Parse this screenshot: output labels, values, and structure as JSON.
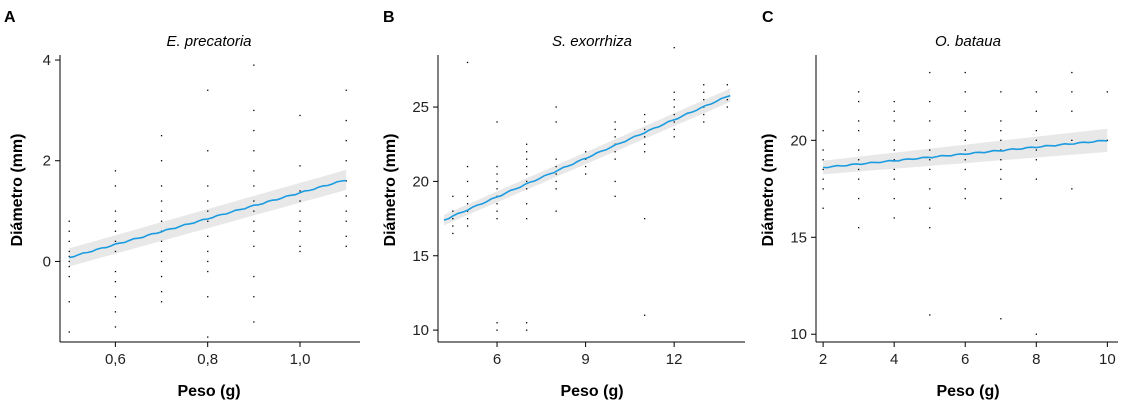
{
  "figure": {
    "fit_color": "#1b9be0",
    "band_color": "#d9d9d9"
  },
  "chart_data": [
    {
      "type": "scatter",
      "panel": "A",
      "title": "E. precatoria",
      "xlabel": "Peso (g)",
      "ylabel": "Diámetro (mm)",
      "xlim": [
        0.48,
        1.13
      ],
      "ylim": [
        -1.6,
        4.1
      ],
      "xticks": [
        0.6,
        0.8,
        1.0
      ],
      "xtick_labels": [
        "0,6",
        "0,8",
        "1,0"
      ],
      "yticks": [
        0,
        2,
        4
      ],
      "ytick_labels": [
        "0",
        "2",
        "4"
      ],
      "grid": false,
      "fit": {
        "x": [
          0.5,
          1.1
        ],
        "y": [
          0.08,
          1.62
        ],
        "ci_halfwidth": [
          0.18,
          0.2
        ]
      },
      "points": {
        "x": [
          0.5,
          0.5,
          0.5,
          0.5,
          0.5,
          0.5,
          0.5,
          0.5,
          0.5,
          0.5,
          0.6,
          0.6,
          0.6,
          0.6,
          0.6,
          0.6,
          0.6,
          0.6,
          0.6,
          0.6,
          0.6,
          0.6,
          0.7,
          0.7,
          0.7,
          0.7,
          0.7,
          0.7,
          0.7,
          0.7,
          0.7,
          0.7,
          0.7,
          0.7,
          0.7,
          0.8,
          0.8,
          0.8,
          0.8,
          0.8,
          0.8,
          0.8,
          0.8,
          0.8,
          0.8,
          0.8,
          0.8,
          0.9,
          0.9,
          0.9,
          0.9,
          0.9,
          0.9,
          0.9,
          0.9,
          0.9,
          0.9,
          0.9,
          0.9,
          0.9,
          0.9,
          1.0,
          1.0,
          1.0,
          1.0,
          1.0,
          1.0,
          1.0,
          1.0,
          1.0,
          1.1,
          1.1,
          1.1,
          1.1,
          1.1,
          1.1,
          1.1,
          1.1,
          1.1,
          1.1
        ],
        "y": [
          -1.4,
          -0.8,
          0.8,
          0.6,
          0.4,
          0.2,
          0.1,
          0.0,
          -0.1,
          -0.3,
          1.8,
          1.5,
          1.0,
          0.6,
          0.4,
          0.2,
          -0.2,
          -0.7,
          -1.0,
          -1.3,
          -0.4,
          0.8,
          2.5,
          2.0,
          1.5,
          1.2,
          1.0,
          0.8,
          0.6,
          0.4,
          0.2,
          0.0,
          -0.3,
          -0.8,
          -0.6,
          3.4,
          2.2,
          1.5,
          1.2,
          1.0,
          0.8,
          0.5,
          0.2,
          0.0,
          -0.2,
          -0.7,
          -1.5,
          3.9,
          3.0,
          2.6,
          2.2,
          1.8,
          1.5,
          1.2,
          1.0,
          0.8,
          0.6,
          0.3,
          -0.3,
          -0.7,
          -1.2,
          2.9,
          1.9,
          1.4,
          1.2,
          1.0,
          0.8,
          0.6,
          0.3,
          0.2,
          3.4,
          2.8,
          2.4,
          2.0,
          1.6,
          1.3,
          1.0,
          0.8,
          0.5,
          0.3
        ]
      }
    },
    {
      "type": "scatter",
      "panel": "B",
      "title": "S. exorrhiza",
      "xlabel": "Peso (g)",
      "ylabel": "Diámetro (mm)",
      "xlim": [
        4.0,
        14.4
      ],
      "ylim": [
        9.2,
        28.5
      ],
      "xticks": [
        6,
        9,
        12
      ],
      "xtick_labels": [
        "6",
        "9",
        "12"
      ],
      "yticks": [
        10,
        15,
        20,
        25
      ],
      "ytick_labels": [
        "10",
        "15",
        "20",
        "25"
      ],
      "grid": false,
      "fit": {
        "x": [
          4.2,
          13.9
        ],
        "y": [
          17.4,
          25.8
        ],
        "ci_halfwidth": [
          0.35,
          0.45
        ]
      },
      "points": {
        "x": [
          4.5,
          4.5,
          4.5,
          4.5,
          4.5,
          5,
          5,
          5,
          5,
          5,
          5,
          5,
          5,
          6,
          6,
          6,
          6,
          6,
          6,
          6,
          6,
          6,
          6,
          6,
          7,
          7,
          7,
          7,
          7,
          7,
          7,
          7,
          7,
          7,
          7,
          8,
          8,
          8,
          8,
          8,
          8,
          8,
          8,
          9,
          9,
          9,
          9,
          10,
          10,
          10,
          10,
          10,
          10,
          10,
          10,
          11,
          11,
          11,
          11,
          11,
          11,
          11,
          11,
          12,
          12,
          12,
          12,
          12,
          12,
          12,
          12,
          13,
          13,
          13,
          13,
          13,
          13,
          13.8,
          13.8,
          13.8
        ],
        "y": [
          16.5,
          17.0,
          17.5,
          18.0,
          19.0,
          17.0,
          17.5,
          18.0,
          18.5,
          19.0,
          20.0,
          21.0,
          28.0,
          10.0,
          10.5,
          17.5,
          18.0,
          18.5,
          19.0,
          19.5,
          20.0,
          20.5,
          21.0,
          24.0,
          10.0,
          10.5,
          17.5,
          18.5,
          19.5,
          20.0,
          20.5,
          21.0,
          21.5,
          22.0,
          22.5,
          18.0,
          19.5,
          20.0,
          20.5,
          21.0,
          21.5,
          24.0,
          25.0,
          20.5,
          21.0,
          21.5,
          22.0,
          19.0,
          20.0,
          21.5,
          22.0,
          22.5,
          23.0,
          23.5,
          24.0,
          11.0,
          17.5,
          22.0,
          22.5,
          23.0,
          23.5,
          24.0,
          24.5,
          23.0,
          23.5,
          24.0,
          24.5,
          25.0,
          25.5,
          26.0,
          29.0,
          24.0,
          24.5,
          25.0,
          25.5,
          26.0,
          26.5,
          25.0,
          25.5,
          26.5
        ]
      }
    },
    {
      "type": "scatter",
      "panel": "C",
      "title": "O. bataua",
      "xlabel": "Peso (g)",
      "ylabel": "Diámetro (mm)",
      "xlim": [
        1.8,
        10.3
      ],
      "ylim": [
        9.6,
        24.4
      ],
      "xticks": [
        2,
        4,
        6,
        8,
        10
      ],
      "xtick_labels": [
        "2",
        "4",
        "6",
        "8",
        "10"
      ],
      "yticks": [
        10,
        15,
        20
      ],
      "ytick_labels": [
        "10",
        "15",
        "20"
      ],
      "grid": false,
      "fit": {
        "x": [
          2.0,
          10.0
        ],
        "y": [
          18.6,
          20.0
        ],
        "ci_halfwidth": [
          0.35,
          0.6
        ]
      },
      "points": {
        "x": [
          2,
          2,
          2,
          2,
          2,
          2,
          2,
          3,
          3,
          3,
          3,
          3,
          3,
          3,
          3,
          3,
          3,
          4,
          4,
          4,
          4,
          4,
          4,
          4,
          4,
          4,
          4,
          5,
          5,
          5,
          5,
          5,
          5,
          5,
          5,
          5,
          5,
          5,
          6,
          6,
          6,
          6,
          6,
          6,
          6,
          6,
          6,
          6,
          7,
          7,
          7,
          7,
          7,
          7,
          7,
          7,
          7,
          7,
          8,
          8,
          8,
          8,
          8,
          8,
          8,
          8,
          9,
          9,
          9,
          9,
          9,
          10,
          10
        ],
        "y": [
          16.5,
          17.5,
          18.0,
          18.5,
          19.0,
          19.5,
          20.5,
          15.5,
          17.0,
          18.0,
          18.5,
          19.0,
          19.5,
          20.5,
          21.0,
          22.0,
          22.5,
          16.0,
          17.0,
          18.0,
          18.5,
          19.0,
          19.5,
          20.0,
          21.0,
          21.5,
          22.0,
          11.0,
          15.5,
          16.5,
          17.5,
          18.5,
          19.0,
          19.5,
          20.0,
          21.0,
          22.0,
          23.5,
          17.0,
          17.5,
          18.5,
          19.0,
          19.5,
          20.0,
          20.5,
          21.5,
          22.5,
          23.5,
          10.8,
          17.0,
          18.0,
          18.5,
          19.0,
          19.5,
          20.0,
          20.5,
          21.0,
          22.5,
          10.0,
          18.0,
          19.0,
          19.5,
          20.0,
          20.5,
          21.5,
          22.5,
          17.5,
          20.0,
          21.5,
          22.5,
          23.5,
          20.0,
          22.5
        ]
      }
    }
  ]
}
